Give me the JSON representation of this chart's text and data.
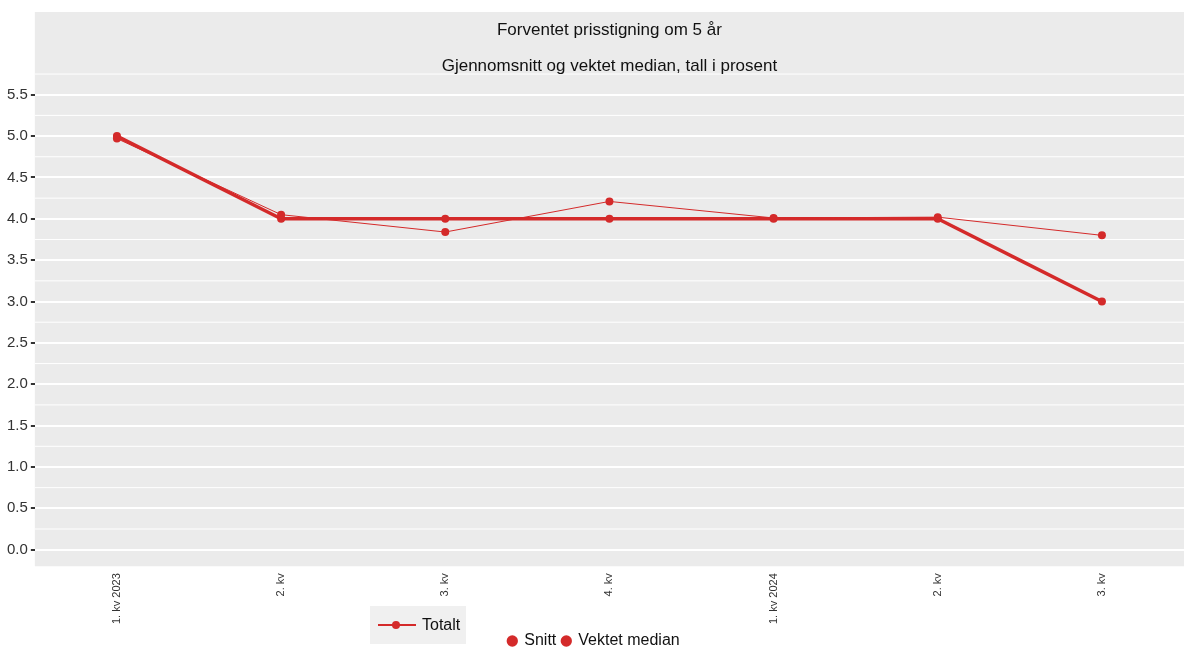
{
  "chart_data": {
    "type": "line",
    "title": "Forventet prisstigning om 5 år",
    "subtitle": "Gjennomsnitt og vektet median, tall i prosent",
    "categories": [
      "1. kv 2023",
      "2. kv",
      "3. kv",
      "4. kv",
      "1. kv 2024",
      "2. kv",
      "3. kv"
    ],
    "series": [
      {
        "name": "Snitt",
        "color": "#d42a2a",
        "values": [
          4.97,
          4.05,
          3.84,
          4.21,
          4.01,
          4.02,
          3.8
        ]
      },
      {
        "name": "Vektet median",
        "color": "#d42a2a",
        "values": [
          5.0,
          4.0,
          4.0,
          4.0,
          4.0,
          4.0,
          3.0
        ]
      }
    ],
    "ylim": [
      -0.2,
      6.5
    ],
    "yticks": [
      {
        "value": 0,
        "label": "0.0"
      },
      {
        "value": 0.5,
        "label": "0.5"
      },
      {
        "value": 1,
        "label": "1.0"
      },
      {
        "value": 1.5,
        "label": "1.5"
      },
      {
        "value": 2,
        "label": "2.0"
      },
      {
        "value": 2.5,
        "label": "2.5"
      },
      {
        "value": 3,
        "label": "3.0"
      },
      {
        "value": 3.5,
        "label": "3.5"
      },
      {
        "value": 4,
        "label": "4.0"
      },
      {
        "value": 4.5,
        "label": "4.5"
      },
      {
        "value": 5,
        "label": "5.0"
      },
      {
        "value": 5.5,
        "label": "5.5"
      }
    ],
    "grid": "y",
    "legend": "bottom",
    "legend_title": "Totalt",
    "marker": "circle",
    "line_style": "solid"
  }
}
